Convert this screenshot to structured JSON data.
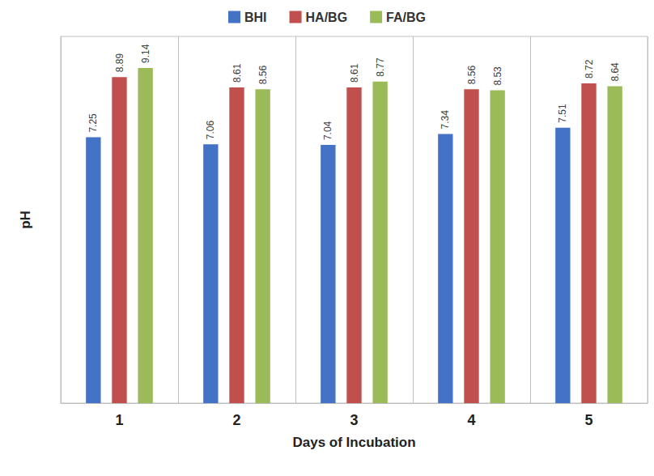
{
  "chart_data": {
    "type": "bar",
    "x_label": "Days of Incubation",
    "y_label": "pH",
    "categories": [
      "1",
      "2",
      "3",
      "4",
      "5"
    ],
    "series": [
      {
        "name": "BHI",
        "color": "#4472c4",
        "values": [
          7.25,
          7.06,
          7.04,
          7.34,
          7.51
        ]
      },
      {
        "name": "HA/BG",
        "color": "#c0504d",
        "values": [
          8.89,
          8.61,
          8.61,
          8.56,
          8.72
        ]
      },
      {
        "name": "FA/BG",
        "color": "#9bbb59",
        "values": [
          9.14,
          8.56,
          8.77,
          8.53,
          8.64
        ]
      }
    ],
    "ylim": [
      0,
      10
    ],
    "tick_labels": "x",
    "data_labels": true,
    "grid": true,
    "legend": "top"
  }
}
